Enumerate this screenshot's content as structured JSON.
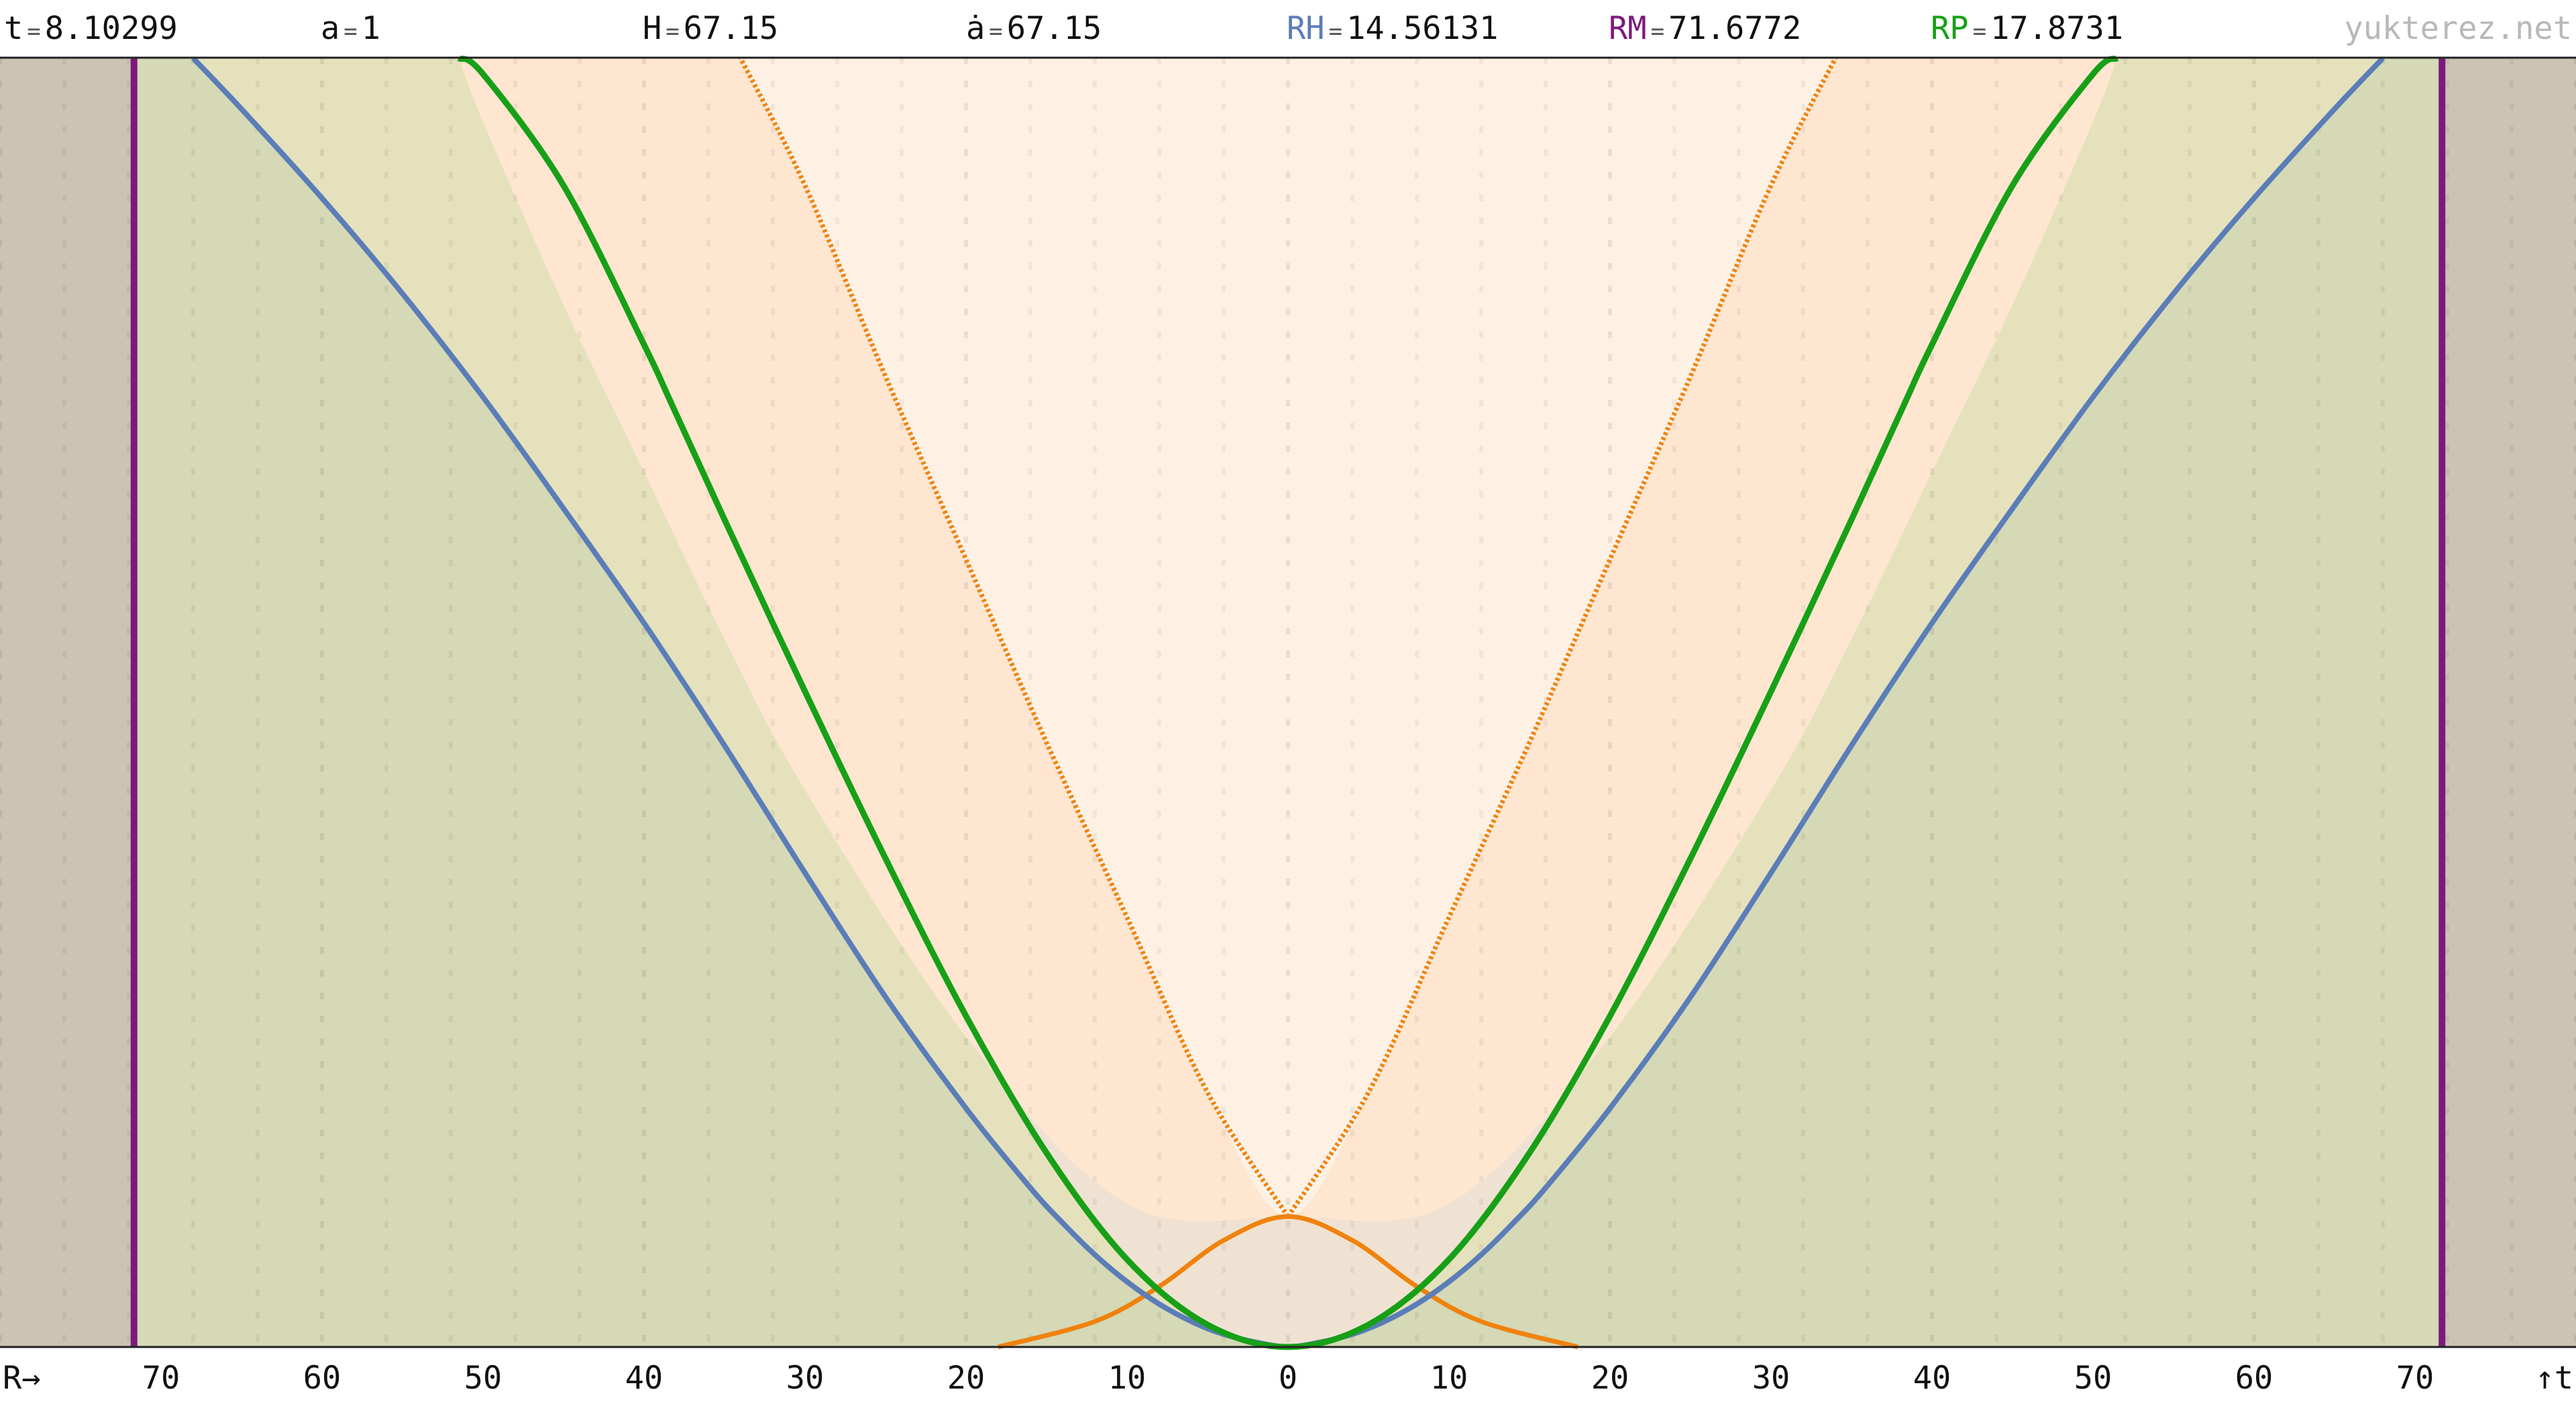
{
  "header": {
    "t": {
      "symbol": "t",
      "value": "8.10299"
    },
    "a": {
      "symbol": "a",
      "value": "1"
    },
    "H": {
      "symbol": "H",
      "value": "67.15"
    },
    "ad": {
      "symbol": "ȧ",
      "value": "67.15"
    },
    "RH": {
      "symbol": "RH",
      "value": "14.56131"
    },
    "RM": {
      "symbol": "RM",
      "value": "71.6772"
    },
    "RP": {
      "symbol": "RP",
      "value": "17.8731"
    },
    "eq": "="
  },
  "watermark": "yukterez.net",
  "axis": {
    "x_label": "R→",
    "t_label": "↑t",
    "ticks": [
      "70",
      "60",
      "50",
      "40",
      "30",
      "20",
      "10",
      "0",
      "10",
      "20",
      "30",
      "40",
      "50",
      "60",
      "70"
    ]
  },
  "colors": {
    "hubble": "#5b7db8",
    "particle_horizon": "#17a017",
    "max_radius": "#7b1a7b",
    "light_cone": "#f0820e",
    "outside": "#cdc3b3",
    "green_fill": "#d5d9b6",
    "olive_fill": "#e5e1bd",
    "orange_band": "#fee6d0",
    "orange_band_light": "#fef1e4",
    "mixed_fill": "#f0e2d2"
  },
  "chart_data": {
    "type": "line",
    "x_unit": "R",
    "xlim": [
      -80,
      80
    ],
    "ylim": [
      0,
      8.10299
    ],
    "rmax": 71.6772,
    "series": [
      {
        "key": "rh",
        "values_x": [
          0,
          2,
          4,
          6,
          8,
          10,
          12,
          14,
          16,
          20,
          25,
          30,
          35,
          40,
          45,
          50,
          55,
          60,
          65,
          68
        ],
        "values_t": [
          0,
          0.03,
          0.08,
          0.16,
          0.27,
          0.41,
          0.58,
          0.78,
          1.0,
          1.5,
          2.2,
          2.98,
          3.78,
          4.55,
          5.27,
          5.97,
          6.62,
          7.22,
          7.78,
          8.1
        ]
      },
      {
        "key": "rp",
        "values_x": [
          0,
          5,
          10,
          15,
          20,
          25,
          30,
          35,
          38.3,
          40,
          45,
          50,
          51.5
        ],
        "values_t": [
          0,
          0.14,
          0.55,
          1.22,
          2.08,
          3.07,
          4.12,
          5.2,
          5.93,
          6.3,
          7.3,
          8.0,
          8.1
        ]
      },
      {
        "key": "lc_past",
        "values_x": [
          -18,
          -12,
          -8,
          -4,
          0,
          4,
          8,
          12,
          18
        ],
        "values_t": [
          0.0,
          0.16,
          0.38,
          0.67,
          0.82,
          0.67,
          0.38,
          0.16,
          0.0
        ]
      },
      {
        "key": "lc_future",
        "values_x": [
          0,
          5,
          10,
          15,
          20,
          25,
          30,
          34
        ],
        "values_t": [
          0.82,
          1.6,
          2.7,
          3.8,
          4.95,
          6.1,
          7.3,
          8.1
        ]
      },
      {
        "key": "band_outer",
        "values_x": [
          0,
          10,
          20,
          30,
          35,
          40,
          45,
          50,
          51.5
        ],
        "values_t": [
          0.82,
          0.9,
          1.95,
          3.5,
          4.45,
          5.5,
          6.55,
          7.7,
          8.1
        ]
      },
      {
        "key": "band_inner",
        "values_x": [
          0,
          5,
          10,
          15,
          20,
          25,
          30,
          34
        ],
        "values_t": [
          0.82,
          1.6,
          2.7,
          3.8,
          4.95,
          6.1,
          7.3,
          8.1
        ]
      }
    ]
  }
}
